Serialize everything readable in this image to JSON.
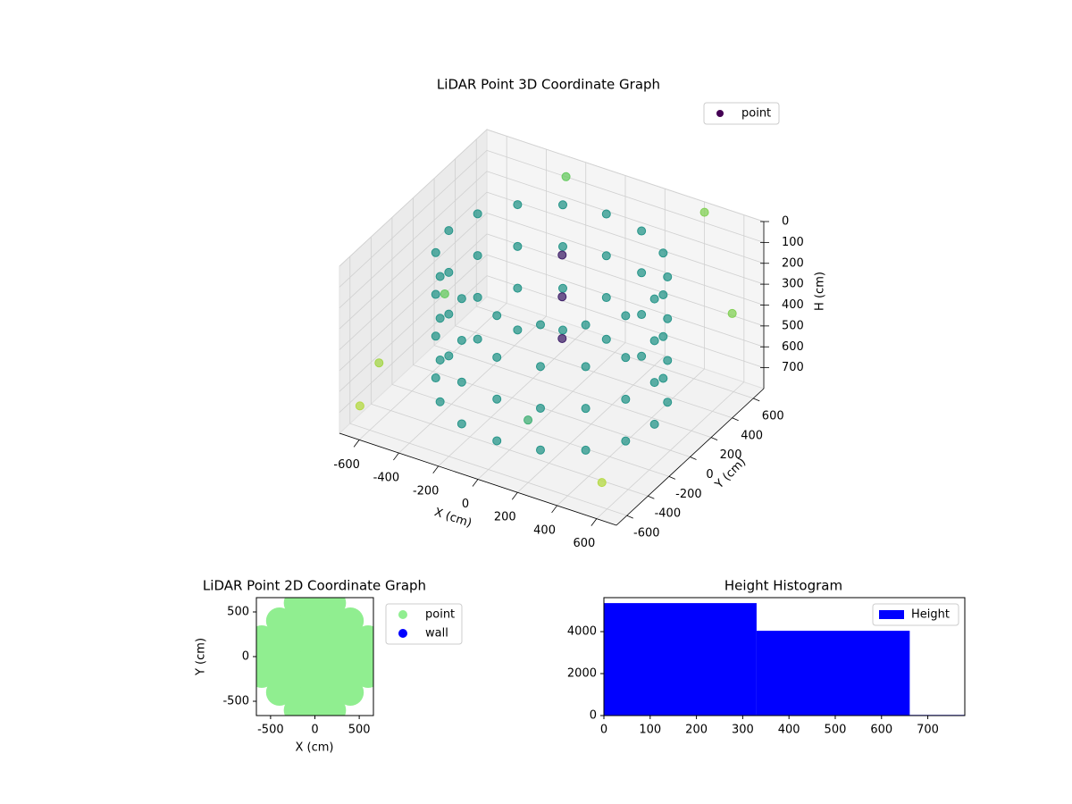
{
  "chart_data": [
    {
      "type": "scatter3d",
      "title": "LiDAR Point 3D Coordinate Graph",
      "x_label": "X (cm)",
      "y_label": "Y (cm)",
      "h_label": "H (cm)",
      "xlim": [
        -700,
        700
      ],
      "ylim": [
        -700,
        700
      ],
      "hlim": [
        0,
        800
      ],
      "xticks": [
        -600,
        -400,
        -200,
        0,
        200,
        400,
        600
      ],
      "yticks": [
        -600,
        -400,
        -200,
        0,
        200,
        400,
        600
      ],
      "hticks": [
        0,
        100,
        200,
        300,
        400,
        500,
        600,
        700
      ],
      "cmap": "viridis",
      "grid": true,
      "legend": "upper right",
      "series": [
        {
          "name": "point",
          "color": "#440154",
          "x": [
            520,
            480,
            368,
            199,
            0,
            -199,
            -368,
            -480,
            -520,
            -480,
            -368,
            -199,
            0,
            199,
            368,
            480,
            520,
            480,
            368,
            199,
            0,
            -199,
            -368,
            -480,
            -520,
            -480,
            -368,
            -199,
            0,
            199,
            368,
            480,
            520,
            480,
            368,
            199,
            0,
            -199,
            -368,
            -480,
            -520,
            -480,
            -368,
            -199,
            0,
            199,
            368,
            480,
            520,
            480,
            368,
            199,
            0,
            -199,
            -368,
            -480,
            -520,
            -480,
            -368,
            -199,
            0,
            199,
            368,
            480,
            -650,
            -700,
            600,
            700,
            -300,
            400,
            200,
            -500,
            0,
            0,
            0
          ],
          "y": [
            0,
            199,
            368,
            480,
            520,
            480,
            368,
            199,
            0,
            -199,
            -368,
            -480,
            -520,
            -480,
            -368,
            -199,
            0,
            199,
            368,
            480,
            520,
            480,
            368,
            199,
            0,
            -199,
            -368,
            -480,
            -520,
            -480,
            -368,
            -199,
            0,
            199,
            368,
            480,
            520,
            480,
            368,
            199,
            0,
            -199,
            -368,
            -480,
            -520,
            -480,
            -368,
            -199,
            0,
            199,
            368,
            480,
            520,
            480,
            368,
            199,
            0,
            -199,
            -368,
            -480,
            -520,
            -480,
            -368,
            -199,
            -600,
            300,
            -650,
            400,
            700,
            700,
            -600,
            -700,
            100,
            100,
            100
          ],
          "h": [
            100,
            100,
            100,
            100,
            100,
            100,
            100,
            100,
            100,
            100,
            100,
            100,
            100,
            100,
            100,
            100,
            300,
            300,
            300,
            300,
            300,
            300,
            300,
            300,
            300,
            300,
            300,
            300,
            300,
            300,
            300,
            300,
            500,
            500,
            500,
            500,
            500,
            500,
            500,
            500,
            500,
            500,
            500,
            500,
            500,
            500,
            500,
            500,
            700,
            700,
            700,
            700,
            700,
            700,
            700,
            700,
            700,
            700,
            700,
            700,
            700,
            700,
            700,
            700,
            700,
            600,
            650,
            300,
            100,
            50,
            500,
            400,
            100,
            300,
            500
          ]
        }
      ]
    },
    {
      "type": "scatter",
      "title": "LiDAR Point 2D Coordinate Graph",
      "x_label": "X (cm)",
      "y_label": "Y (cm)",
      "xlim": [
        -660,
        660
      ],
      "ylim": [
        -660,
        660
      ],
      "xticks": [
        -500,
        0,
        500
      ],
      "yticks": [
        -500,
        0,
        500
      ],
      "legend": "outside right",
      "series": [
        {
          "name": "point",
          "color": "#90ee90",
          "x": [
            -200,
            0,
            200,
            -400,
            -200,
            0,
            200,
            400,
            -600,
            -400,
            -200,
            0,
            200,
            400,
            600,
            -600,
            -400,
            -200,
            0,
            200,
            400,
            600,
            -600,
            -400,
            -200,
            0,
            200,
            400,
            600,
            -400,
            -200,
            0,
            200,
            400,
            -200,
            0,
            200
          ],
          "y": [
            -600,
            -600,
            -600,
            -400,
            -400,
            -400,
            -400,
            -400,
            -200,
            -200,
            -200,
            -200,
            -200,
            -200,
            -200,
            0,
            0,
            0,
            0,
            0,
            0,
            0,
            200,
            200,
            200,
            200,
            200,
            200,
            200,
            400,
            400,
            400,
            400,
            400,
            600,
            600,
            600
          ]
        },
        {
          "name": "wall",
          "color": "#0000ff",
          "x": [],
          "y": []
        }
      ]
    },
    {
      "type": "histogram",
      "title": "Height Histogram",
      "bins": [
        0,
        330,
        661,
        991
      ],
      "xlim": [
        0,
        780
      ],
      "ylim": [
        0,
        5620
      ],
      "xticks": [
        0,
        100,
        200,
        300,
        400,
        500,
        600,
        700
      ],
      "yticks": [
        0,
        2000,
        4000
      ],
      "legend": "upper right",
      "series": [
        {
          "name": "Height",
          "color": "#0000ff",
          "values": [
            5360,
            4040,
            30
          ]
        }
      ]
    }
  ]
}
